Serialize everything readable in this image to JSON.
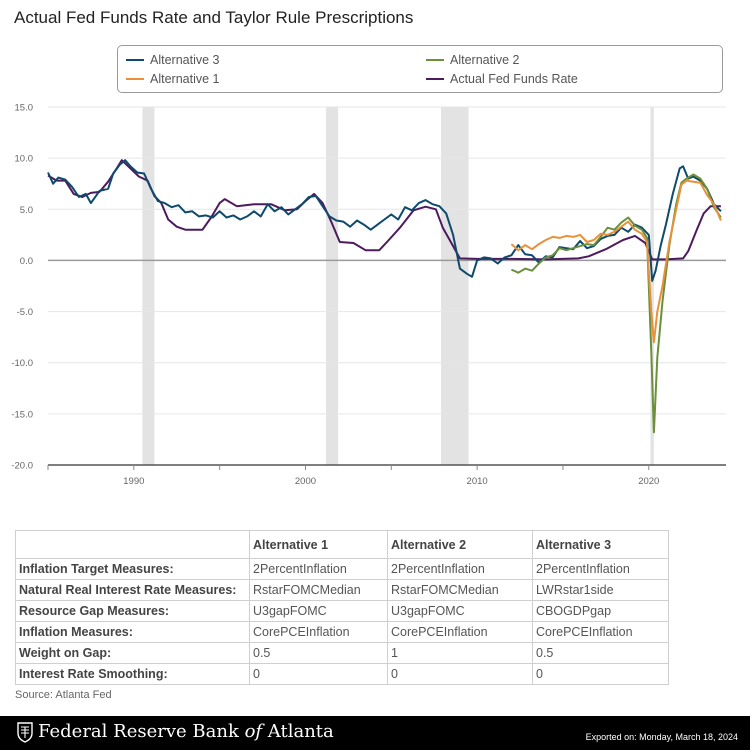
{
  "title": "Actual Fed Funds Rate and Taylor Rule Prescriptions",
  "legend": [
    {
      "label": "Alternative 3",
      "color": "#0e4a6b"
    },
    {
      "label": "Alternative 2",
      "color": "#6b8f3b"
    },
    {
      "label": "Alternative 1",
      "color": "#e8913a"
    },
    {
      "label": "Actual Fed Funds Rate",
      "color": "#4e1a5e"
    }
  ],
  "chart_data": {
    "type": "line",
    "title": "Actual Fed Funds Rate and Taylor Rule Prescriptions",
    "xlabel": "",
    "ylabel": "",
    "xlim": [
      1985,
      2024.5
    ],
    "ylim": [
      -20,
      15
    ],
    "x_ticks": [
      1990,
      2000,
      2010,
      2020
    ],
    "y_ticks": [
      "15.0",
      "10.0",
      "5.0",
      "0.0",
      "-5.0",
      "-10.0",
      "-15.0",
      "-20.0"
    ],
    "grid": true,
    "recessions": [
      [
        1990.5,
        1991.2
      ],
      [
        2001.2,
        2001.9
      ],
      [
        2007.9,
        2009.5
      ],
      [
        2020.1,
        2020.3
      ]
    ],
    "series": [
      {
        "name": "Actual Fed Funds Rate",
        "color": "#4e1a5e",
        "points": [
          [
            1985.0,
            8.3
          ],
          [
            1985.5,
            7.8
          ],
          [
            1986.0,
            7.8
          ],
          [
            1986.5,
            6.5
          ],
          [
            1987.0,
            6.2
          ],
          [
            1987.5,
            6.6
          ],
          [
            1988.0,
            6.7
          ],
          [
            1988.5,
            7.7
          ],
          [
            1989.0,
            9.0
          ],
          [
            1989.3,
            9.8
          ],
          [
            1989.8,
            9.0
          ],
          [
            1990.3,
            8.2
          ],
          [
            1990.8,
            7.8
          ],
          [
            1991.2,
            6.3
          ],
          [
            1991.6,
            5.6
          ],
          [
            1992.0,
            4.0
          ],
          [
            1992.5,
            3.3
          ],
          [
            1993.0,
            3.0
          ],
          [
            1994.0,
            3.0
          ],
          [
            1994.5,
            4.2
          ],
          [
            1995.0,
            5.6
          ],
          [
            1995.3,
            6.0
          ],
          [
            1996.0,
            5.3
          ],
          [
            1997.0,
            5.5
          ],
          [
            1998.0,
            5.5
          ],
          [
            1998.8,
            4.9
          ],
          [
            1999.5,
            5.0
          ],
          [
            2000.0,
            5.8
          ],
          [
            2000.5,
            6.5
          ],
          [
            2001.0,
            5.6
          ],
          [
            2001.5,
            3.8
          ],
          [
            2002.0,
            1.8
          ],
          [
            2002.8,
            1.7
          ],
          [
            2003.5,
            1.0
          ],
          [
            2004.3,
            1.0
          ],
          [
            2004.8,
            1.9
          ],
          [
            2005.5,
            3.2
          ],
          [
            2006.3,
            4.9
          ],
          [
            2007.0,
            5.25
          ],
          [
            2007.6,
            5.0
          ],
          [
            2008.0,
            3.2
          ],
          [
            2008.4,
            2.0
          ],
          [
            2009.0,
            0.2
          ],
          [
            2010.0,
            0.15
          ],
          [
            2012.0,
            0.15
          ],
          [
            2014.0,
            0.1
          ],
          [
            2015.9,
            0.2
          ],
          [
            2016.5,
            0.4
          ],
          [
            2017.5,
            1.1
          ],
          [
            2018.5,
            2.0
          ],
          [
            2019.2,
            2.4
          ],
          [
            2019.8,
            1.7
          ],
          [
            2020.2,
            0.1
          ],
          [
            2021.0,
            0.1
          ],
          [
            2022.0,
            0.2
          ],
          [
            2022.3,
            0.9
          ],
          [
            2022.8,
            3.0
          ],
          [
            2023.2,
            4.6
          ],
          [
            2023.6,
            5.3
          ],
          [
            2024.2,
            5.3
          ]
        ]
      },
      {
        "name": "Alternative 3",
        "color": "#0e4a6b",
        "points": [
          [
            1985.0,
            8.6
          ],
          [
            1985.3,
            7.5
          ],
          [
            1985.6,
            8.1
          ],
          [
            1986.0,
            7.9
          ],
          [
            1986.4,
            7.2
          ],
          [
            1986.8,
            6.2
          ],
          [
            1987.2,
            6.5
          ],
          [
            1987.5,
            5.6
          ],
          [
            1988.0,
            6.8
          ],
          [
            1988.5,
            7.0
          ],
          [
            1988.8,
            8.5
          ],
          [
            1989.2,
            9.4
          ],
          [
            1989.5,
            9.8
          ],
          [
            1989.8,
            9.2
          ],
          [
            1990.2,
            8.6
          ],
          [
            1990.6,
            8.5
          ],
          [
            1991.0,
            7.0
          ],
          [
            1991.4,
            5.8
          ],
          [
            1991.8,
            5.6
          ],
          [
            1992.2,
            5.2
          ],
          [
            1992.6,
            5.4
          ],
          [
            1993.0,
            4.7
          ],
          [
            1993.4,
            4.8
          ],
          [
            1993.8,
            4.3
          ],
          [
            1994.2,
            4.4
          ],
          [
            1994.6,
            4.2
          ],
          [
            1995.0,
            4.8
          ],
          [
            1995.4,
            4.2
          ],
          [
            1995.8,
            4.4
          ],
          [
            1996.2,
            4.0
          ],
          [
            1996.6,
            4.3
          ],
          [
            1997.0,
            4.8
          ],
          [
            1997.4,
            4.3
          ],
          [
            1997.8,
            5.5
          ],
          [
            1998.2,
            4.8
          ],
          [
            1998.6,
            5.2
          ],
          [
            1999.0,
            4.5
          ],
          [
            1999.4,
            5.0
          ],
          [
            1999.8,
            5.5
          ],
          [
            2000.2,
            6.2
          ],
          [
            2000.6,
            6.3
          ],
          [
            2001.0,
            5.3
          ],
          [
            2001.4,
            4.3
          ],
          [
            2001.8,
            3.9
          ],
          [
            2002.2,
            3.8
          ],
          [
            2002.6,
            3.3
          ],
          [
            2003.0,
            3.9
          ],
          [
            2003.4,
            3.5
          ],
          [
            2003.8,
            3.0
          ],
          [
            2004.2,
            3.5
          ],
          [
            2004.6,
            4.0
          ],
          [
            2005.0,
            4.5
          ],
          [
            2005.4,
            4.0
          ],
          [
            2005.8,
            5.2
          ],
          [
            2006.2,
            4.9
          ],
          [
            2006.6,
            5.6
          ],
          [
            2007.0,
            5.9
          ],
          [
            2007.4,
            5.5
          ],
          [
            2007.8,
            5.3
          ],
          [
            2008.2,
            4.6
          ],
          [
            2008.6,
            2.5
          ],
          [
            2009.0,
            -0.8
          ],
          [
            2009.4,
            -1.3
          ],
          [
            2009.7,
            -1.6
          ],
          [
            2010.0,
            0.0
          ],
          [
            2010.4,
            0.3
          ],
          [
            2010.8,
            0.2
          ],
          [
            2011.2,
            -0.3
          ],
          [
            2011.6,
            0.3
          ],
          [
            2012.0,
            0.5
          ],
          [
            2012.4,
            1.5
          ],
          [
            2012.8,
            0.6
          ],
          [
            2013.2,
            0.5
          ],
          [
            2013.6,
            -0.2
          ],
          [
            2014.0,
            0.4
          ],
          [
            2014.4,
            0.3
          ],
          [
            2014.8,
            1.3
          ],
          [
            2015.2,
            1.2
          ],
          [
            2015.6,
            1.1
          ],
          [
            2016.0,
            1.9
          ],
          [
            2016.4,
            1.2
          ],
          [
            2016.8,
            1.4
          ],
          [
            2017.2,
            2.1
          ],
          [
            2017.6,
            2.4
          ],
          [
            2018.0,
            2.5
          ],
          [
            2018.4,
            3.2
          ],
          [
            2018.8,
            2.8
          ],
          [
            2019.2,
            3.5
          ],
          [
            2019.6,
            3.2
          ],
          [
            2020.0,
            2.5
          ],
          [
            2020.2,
            -2.0
          ],
          [
            2020.4,
            -1.0
          ],
          [
            2020.7,
            1.5
          ],
          [
            2021.0,
            3.5
          ],
          [
            2021.4,
            6.5
          ],
          [
            2021.8,
            9.0
          ],
          [
            2022.0,
            9.2
          ],
          [
            2022.3,
            8.0
          ],
          [
            2022.6,
            8.2
          ],
          [
            2023.0,
            7.8
          ],
          [
            2023.4,
            7.0
          ],
          [
            2023.8,
            5.5
          ],
          [
            2024.2,
            4.8
          ]
        ]
      },
      {
        "name": "Alternative 2",
        "color": "#6b8f3b",
        "points": [
          [
            2012.0,
            -0.9
          ],
          [
            2012.4,
            -1.2
          ],
          [
            2012.8,
            -0.8
          ],
          [
            2013.2,
            -1.0
          ],
          [
            2013.6,
            -0.3
          ],
          [
            2014.0,
            0.3
          ],
          [
            2014.4,
            0.5
          ],
          [
            2014.8,
            1.2
          ],
          [
            2015.2,
            1.0
          ],
          [
            2015.6,
            1.2
          ],
          [
            2016.0,
            1.4
          ],
          [
            2016.4,
            1.6
          ],
          [
            2016.8,
            1.5
          ],
          [
            2017.2,
            2.3
          ],
          [
            2017.6,
            3.2
          ],
          [
            2018.0,
            3.0
          ],
          [
            2018.4,
            3.7
          ],
          [
            2018.8,
            4.2
          ],
          [
            2019.2,
            3.4
          ],
          [
            2019.6,
            3.0
          ],
          [
            2019.9,
            2.2
          ],
          [
            2020.15,
            -9.0
          ],
          [
            2020.3,
            -16.8
          ],
          [
            2020.5,
            -9.5
          ],
          [
            2020.8,
            -4.0
          ],
          [
            2021.2,
            1.5
          ],
          [
            2021.6,
            5.5
          ],
          [
            2021.9,
            7.6
          ],
          [
            2022.2,
            8.0
          ],
          [
            2022.6,
            8.4
          ],
          [
            2023.0,
            8.0
          ],
          [
            2023.4,
            7.0
          ],
          [
            2023.8,
            5.2
          ],
          [
            2024.2,
            4.2
          ]
        ]
      },
      {
        "name": "Alternative 1",
        "color": "#e8913a",
        "points": [
          [
            2012.0,
            1.6
          ],
          [
            2012.4,
            1.0
          ],
          [
            2012.8,
            1.5
          ],
          [
            2013.2,
            1.1
          ],
          [
            2013.6,
            1.6
          ],
          [
            2014.0,
            2.0
          ],
          [
            2014.4,
            2.3
          ],
          [
            2014.8,
            2.2
          ],
          [
            2015.2,
            2.4
          ],
          [
            2015.6,
            2.3
          ],
          [
            2016.0,
            2.5
          ],
          [
            2016.4,
            1.8
          ],
          [
            2016.8,
            2.0
          ],
          [
            2017.2,
            2.6
          ],
          [
            2017.6,
            2.5
          ],
          [
            2018.0,
            2.8
          ],
          [
            2018.4,
            3.3
          ],
          [
            2018.8,
            3.8
          ],
          [
            2019.2,
            3.0
          ],
          [
            2019.6,
            2.6
          ],
          [
            2019.9,
            1.8
          ],
          [
            2020.15,
            -5.0
          ],
          [
            2020.3,
            -8.0
          ],
          [
            2020.5,
            -5.0
          ],
          [
            2020.8,
            -2.5
          ],
          [
            2021.2,
            1.8
          ],
          [
            2021.6,
            5.0
          ],
          [
            2021.9,
            7.4
          ],
          [
            2022.2,
            7.8
          ],
          [
            2022.6,
            7.7
          ],
          [
            2023.0,
            7.6
          ],
          [
            2023.4,
            6.4
          ],
          [
            2023.8,
            5.5
          ],
          [
            2024.2,
            3.9
          ]
        ]
      }
    ]
  },
  "table": {
    "headers": [
      "",
      "Alternative 1",
      "Alternative 2",
      "Alternative 3"
    ],
    "rows": [
      [
        "Inflation Target Measures:",
        "2PercentInflation",
        "2PercentInflation",
        "2PercentInflation"
      ],
      [
        "Natural Real Interest Rate Measures:",
        "RstarFOMCMedian",
        "RstarFOMCMedian",
        "LWRstar1side"
      ],
      [
        "Resource Gap Measures:",
        "U3gapFOMC",
        "U3gapFOMC",
        "CBOGDPgap"
      ],
      [
        "Inflation Measures:",
        "CorePCEInflation",
        "CorePCEInflation",
        "CorePCEInflation"
      ],
      [
        "Weight on Gap:",
        "0.5",
        "1",
        "0.5"
      ],
      [
        "Interest Rate Smoothing:",
        "0",
        "0",
        "0"
      ]
    ]
  },
  "source": "Source: Atlanta Fed",
  "footer": {
    "bank_name_part1": "Federal Reserve Bank ",
    "bank_name_of": "of",
    "bank_name_part2": " Atlanta",
    "exported": "Exported on: Monday, March 18, 2024"
  }
}
